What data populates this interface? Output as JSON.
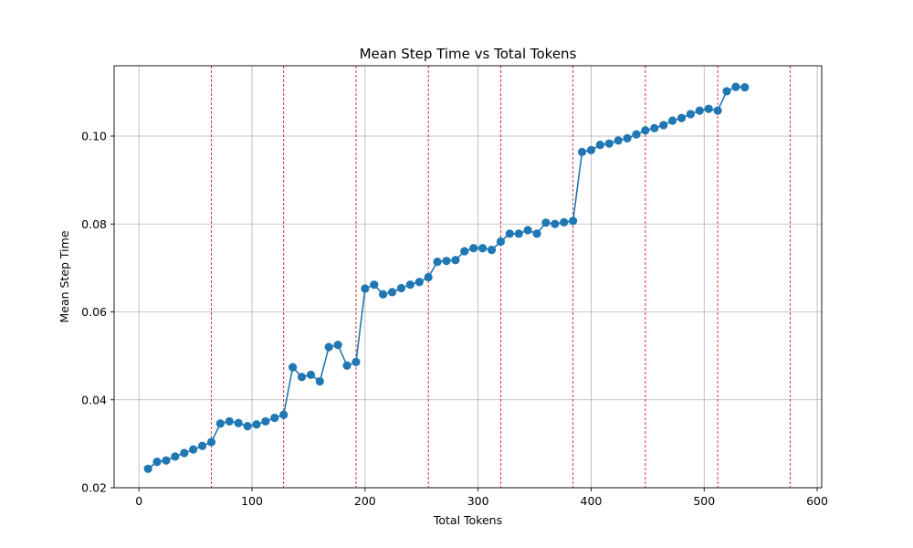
{
  "chart_data": {
    "type": "line",
    "title": "Mean Step Time vs Total Tokens",
    "xlabel": "Total Tokens",
    "ylabel": "Mean Step Time",
    "xlim": [
      -22,
      604
    ],
    "ylim": [
      0.02,
      0.116
    ],
    "xticks": [
      0,
      100,
      200,
      300,
      400,
      500,
      600
    ],
    "xtick_labels": [
      "0",
      "100",
      "200",
      "300",
      "400",
      "500",
      "600"
    ],
    "yticks": [
      0.02,
      0.04,
      0.06,
      0.08,
      0.1
    ],
    "ytick_labels": [
      "0.02",
      "0.04",
      "0.06",
      "0.08",
      "0.10"
    ],
    "grid": true,
    "vlines": [
      64,
      128,
      192,
      256,
      320,
      384,
      448,
      512,
      576
    ],
    "vline_color": "#cc0000",
    "series": [
      {
        "color": "#1f77b4",
        "marker": "circle",
        "x": [
          8,
          16,
          24,
          32,
          40,
          48,
          56,
          64,
          72,
          80,
          88,
          96,
          104,
          112,
          120,
          128,
          136,
          144,
          152,
          160,
          168,
          176,
          184,
          192,
          200,
          208,
          216,
          224,
          232,
          240,
          248,
          256,
          264,
          272,
          280,
          288,
          296,
          304,
          312,
          320,
          328,
          336,
          344,
          352,
          360,
          368,
          376,
          384,
          392,
          400,
          408,
          416,
          424,
          432,
          440,
          448,
          456,
          464,
          472,
          480,
          488,
          496,
          504,
          512,
          520,
          528,
          536
        ],
        "y": [
          0.0243,
          0.0259,
          0.0262,
          0.0271,
          0.0279,
          0.0287,
          0.0295,
          0.0304,
          0.0346,
          0.0351,
          0.0347,
          0.034,
          0.0344,
          0.0351,
          0.0359,
          0.0366,
          0.0474,
          0.0452,
          0.0457,
          0.0442,
          0.052,
          0.0525,
          0.0478,
          0.0486,
          0.0653,
          0.0662,
          0.064,
          0.0645,
          0.0654,
          0.0662,
          0.0668,
          0.0679,
          0.0714,
          0.0716,
          0.0718,
          0.0738,
          0.0745,
          0.0745,
          0.0741,
          0.076,
          0.0778,
          0.0778,
          0.0786,
          0.0778,
          0.0803,
          0.08,
          0.0804,
          0.0807,
          0.0964,
          0.0968,
          0.098,
          0.0983,
          0.099,
          0.0995,
          0.1004,
          0.1013,
          0.1018,
          0.1025,
          0.1035,
          0.1041,
          0.105,
          0.1058,
          0.1062,
          0.1058,
          0.1102,
          0.1112,
          0.1111
        ]
      }
    ]
  }
}
